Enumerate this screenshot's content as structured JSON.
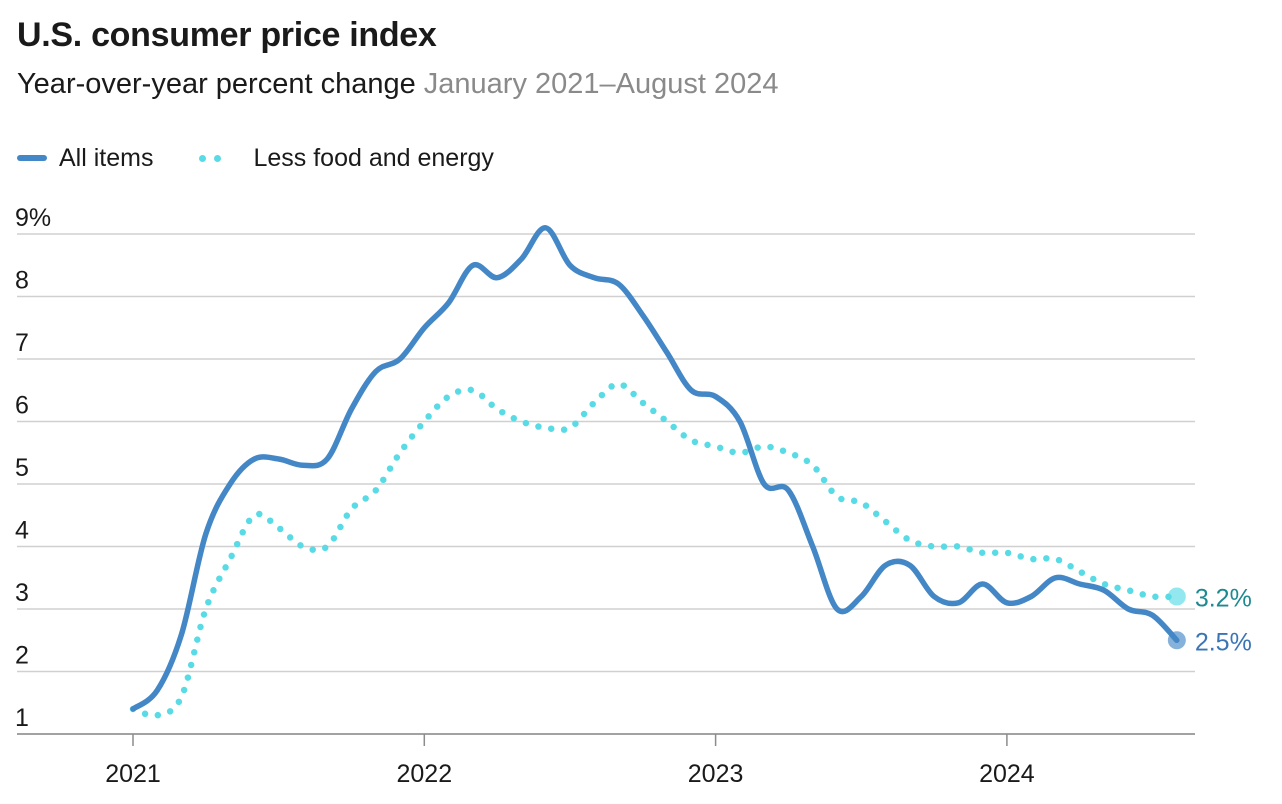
{
  "title": "U.S. consumer price index",
  "subtitle": "Year-over-year percent change",
  "subtitle_range": "January 2021–August 2024",
  "colors": {
    "all_items": "#4487c6",
    "core": "#59dbe6",
    "core_label": "#1d8a92",
    "all_label": "#3a76b5",
    "grid": "#d0d0d0",
    "axis": "#8c8c8c"
  },
  "legend": [
    {
      "name": "All items",
      "style": "solid"
    },
    {
      "name": "Less food and energy",
      "style": "dotted"
    }
  ],
  "chart_data": {
    "type": "line",
    "title": "U.S. consumer price index",
    "subtitle": "Year-over-year percent change January 2021–August 2024",
    "xlabel": "",
    "ylabel": "",
    "ylim": [
      0.8,
      9.0
    ],
    "yticks": [
      {
        "value": 9,
        "label": "9%"
      },
      {
        "value": 8,
        "label": "8"
      },
      {
        "value": 7,
        "label": "7"
      },
      {
        "value": 6,
        "label": "6"
      },
      {
        "value": 5,
        "label": "5"
      },
      {
        "value": 4,
        "label": "4"
      },
      {
        "value": 3,
        "label": "3"
      },
      {
        "value": 2,
        "label": "2"
      },
      {
        "value": 1,
        "label": "1"
      }
    ],
    "xticks": [
      "2021",
      "2022",
      "2023",
      "2024"
    ],
    "grid": true,
    "legend_position": "top-left",
    "x": [
      "2021-01",
      "2021-02",
      "2021-03",
      "2021-04",
      "2021-05",
      "2021-06",
      "2021-07",
      "2021-08",
      "2021-09",
      "2021-10",
      "2021-11",
      "2021-12",
      "2022-01",
      "2022-02",
      "2022-03",
      "2022-04",
      "2022-05",
      "2022-06",
      "2022-07",
      "2022-08",
      "2022-09",
      "2022-10",
      "2022-11",
      "2022-12",
      "2023-01",
      "2023-02",
      "2023-03",
      "2023-04",
      "2023-05",
      "2023-06",
      "2023-07",
      "2023-08",
      "2023-09",
      "2023-10",
      "2023-11",
      "2023-12",
      "2024-01",
      "2024-02",
      "2024-03",
      "2024-04",
      "2024-05",
      "2024-06",
      "2024-07",
      "2024-08"
    ],
    "series": [
      {
        "name": "All items",
        "style": "solid",
        "values": [
          1.4,
          1.7,
          2.6,
          4.2,
          5.0,
          5.4,
          5.4,
          5.3,
          5.4,
          6.2,
          6.8,
          7.0,
          7.5,
          7.9,
          8.5,
          8.3,
          8.6,
          9.1,
          8.5,
          8.3,
          8.2,
          7.7,
          7.1,
          6.5,
          6.4,
          6.0,
          5.0,
          4.9,
          4.0,
          3.0,
          3.2,
          3.7,
          3.7,
          3.2,
          3.1,
          3.4,
          3.1,
          3.2,
          3.5,
          3.4,
          3.3,
          3.0,
          2.9,
          2.5
        ],
        "end_label": "2.5%"
      },
      {
        "name": "Less food and energy",
        "style": "dotted",
        "values": [
          1.4,
          1.3,
          1.6,
          3.0,
          3.8,
          4.5,
          4.3,
          4.0,
          4.0,
          4.6,
          4.9,
          5.5,
          6.0,
          6.4,
          6.5,
          6.2,
          6.0,
          5.9,
          5.9,
          6.3,
          6.6,
          6.3,
          6.0,
          5.7,
          5.6,
          5.5,
          5.6,
          5.5,
          5.3,
          4.8,
          4.7,
          4.4,
          4.1,
          4.0,
          4.0,
          3.9,
          3.9,
          3.8,
          3.8,
          3.6,
          3.4,
          3.3,
          3.2,
          3.2
        ],
        "end_label": "3.2%"
      }
    ]
  }
}
